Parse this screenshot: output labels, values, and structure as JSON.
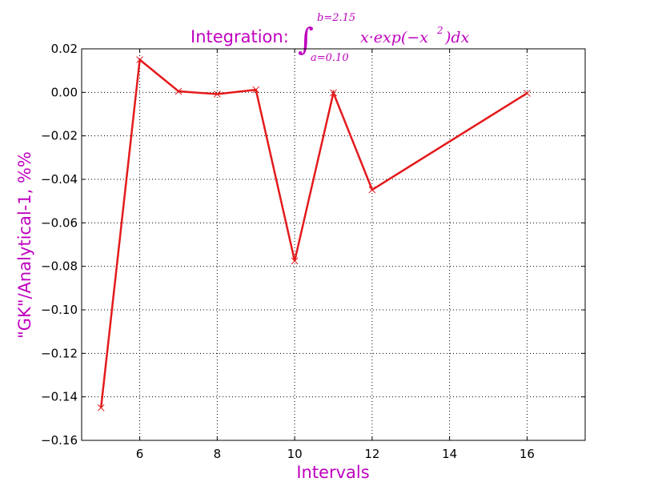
{
  "chart_data": {
    "type": "line",
    "title": {
      "prefix": "Integration:",
      "integral_sign": "∫",
      "upper_limit": "b=2.15",
      "lower_limit": "a=0.10",
      "integrand": "x·exp(−x",
      "exponent": "2",
      "integrand_end": ")dx"
    },
    "xlabel": "Intervals",
    "ylabel": "\"GK\"/Analytical-1, %%",
    "xlim": [
      4.5,
      17.5
    ],
    "ylim": [
      -0.16,
      0.02
    ],
    "xticks": [
      6,
      8,
      10,
      12,
      14,
      16
    ],
    "yticks": [
      0.02,
      0.0,
      -0.02,
      -0.04,
      -0.06,
      -0.08,
      -0.1,
      -0.12,
      -0.14,
      -0.16
    ],
    "ytick_labels": [
      "0.02",
      "0.00",
      "−0.02",
      "−0.04",
      "−0.06",
      "−0.08",
      "−0.10",
      "−0.12",
      "−0.14",
      "−0.16"
    ],
    "xtick_labels": [
      "6",
      "8",
      "10",
      "12",
      "14",
      "16"
    ],
    "grid": true,
    "series": [
      {
        "marker": "x",
        "color": "#e41a1c",
        "x": [
          5,
          6,
          7,
          8,
          9,
          10,
          11,
          12,
          16
        ],
        "y": [
          -0.145,
          0.015,
          0.0005,
          -0.0008,
          0.0012,
          -0.0775,
          -0.0002,
          -0.0448,
          -0.0004
        ]
      }
    ],
    "colors": {
      "line": "#e41a1c",
      "label": "#bf00bf",
      "grid": "#000000"
    }
  }
}
